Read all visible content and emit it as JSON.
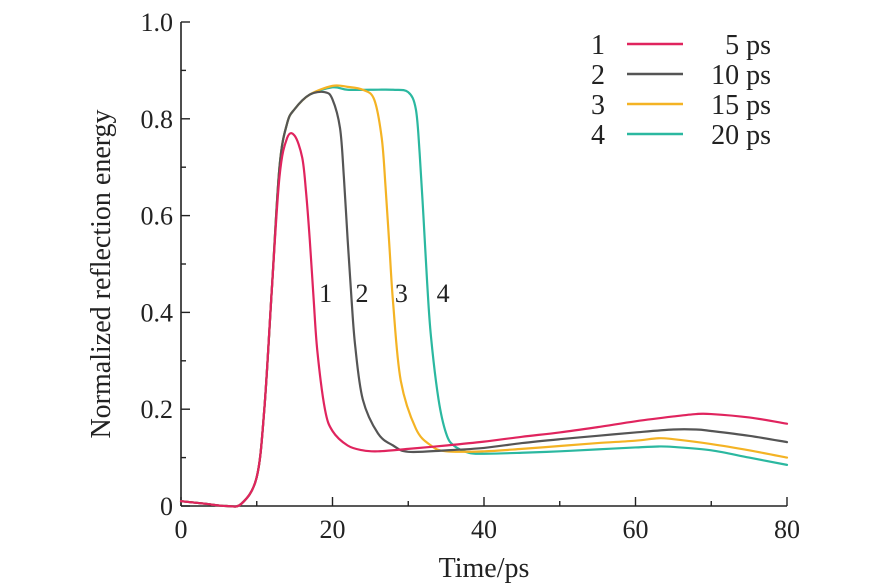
{
  "chart_data": {
    "type": "line",
    "xlabel": "Time/ps",
    "ylabel": "Normalized reflection energy",
    "xlim": [
      0,
      80
    ],
    "ylim": [
      0,
      1.0
    ],
    "xticks": [
      0,
      20,
      40,
      60,
      80
    ],
    "xtick_labels": [
      "0",
      "20",
      "40",
      "60",
      "80"
    ],
    "yticks": [
      0,
      0.2,
      0.4,
      0.6,
      0.8,
      1.0
    ],
    "ytick_labels": [
      "0",
      "0.2",
      "0.4",
      "0.6",
      "0.8",
      "1.0"
    ],
    "legend_position": "top-right",
    "series": [
      {
        "name": "5 ps",
        "index_label": "1",
        "color": "#e0245e",
        "x": [
          0,
          3,
          6,
          8,
          10,
          11,
          12,
          13,
          14,
          15,
          16,
          16.5,
          17,
          17.5,
          18,
          19,
          20,
          22,
          24,
          26,
          30,
          35,
          40,
          45,
          50,
          55,
          60,
          65,
          68,
          70,
          75,
          80
        ],
        "y": [
          0.01,
          0.005,
          0.0,
          0.005,
          0.06,
          0.2,
          0.45,
          0.68,
          0.76,
          0.765,
          0.72,
          0.65,
          0.55,
          0.43,
          0.32,
          0.2,
          0.155,
          0.125,
          0.115,
          0.113,
          0.118,
          0.125,
          0.133,
          0.143,
          0.152,
          0.163,
          0.175,
          0.185,
          0.19,
          0.19,
          0.183,
          0.17
        ]
      },
      {
        "name": "10 ps",
        "index_label": "2",
        "color": "#555555",
        "x": [
          0,
          3,
          6,
          8,
          10,
          11,
          12,
          13,
          14,
          15,
          17,
          19,
          20,
          21,
          21.5,
          22,
          22.5,
          23,
          24,
          26,
          28,
          30,
          35,
          40,
          45,
          50,
          55,
          60,
          65,
          68,
          70,
          75,
          80
        ],
        "y": [
          0.01,
          0.005,
          0.0,
          0.005,
          0.06,
          0.2,
          0.45,
          0.7,
          0.79,
          0.82,
          0.85,
          0.855,
          0.84,
          0.78,
          0.68,
          0.55,
          0.43,
          0.33,
          0.22,
          0.15,
          0.125,
          0.112,
          0.115,
          0.12,
          0.13,
          0.138,
          0.145,
          0.152,
          0.158,
          0.158,
          0.155,
          0.145,
          0.132
        ]
      },
      {
        "name": "15 ps",
        "index_label": "3",
        "color": "#f4b324",
        "x": [
          0,
          3,
          6,
          8,
          10,
          11,
          12,
          13,
          14,
          15,
          17,
          20,
          22,
          24,
          25.5,
          26.5,
          27,
          27.5,
          28,
          29,
          31,
          33,
          35,
          40,
          45,
          50,
          55,
          60,
          63,
          65,
          70,
          75,
          80
        ],
        "y": [
          0.01,
          0.005,
          0.0,
          0.005,
          0.06,
          0.2,
          0.45,
          0.7,
          0.79,
          0.82,
          0.85,
          0.868,
          0.866,
          0.86,
          0.84,
          0.76,
          0.66,
          0.54,
          0.42,
          0.26,
          0.16,
          0.125,
          0.113,
          0.113,
          0.118,
          0.124,
          0.13,
          0.135,
          0.14,
          0.138,
          0.128,
          0.115,
          0.1
        ]
      },
      {
        "name": "20 ps",
        "index_label": "4",
        "color": "#2bb8a0",
        "x": [
          0,
          3,
          6,
          8,
          10,
          11,
          12,
          13,
          14,
          15,
          17,
          20,
          22,
          25,
          28,
          30,
          31,
          31.5,
          32,
          32.5,
          33,
          34,
          35,
          36,
          38,
          40,
          45,
          50,
          55,
          60,
          63,
          65,
          70,
          75,
          80
        ],
        "y": [
          0.01,
          0.005,
          0.0,
          0.005,
          0.06,
          0.2,
          0.45,
          0.7,
          0.79,
          0.82,
          0.85,
          0.865,
          0.86,
          0.86,
          0.86,
          0.855,
          0.82,
          0.73,
          0.6,
          0.46,
          0.35,
          0.22,
          0.15,
          0.125,
          0.11,
          0.108,
          0.11,
          0.113,
          0.117,
          0.121,
          0.123,
          0.122,
          0.115,
          0.1,
          0.085
        ]
      }
    ],
    "annotations": [
      {
        "text": "1",
        "x": 19.1,
        "y": 0.44
      },
      {
        "text": "2",
        "x": 23.9,
        "y": 0.44
      },
      {
        "text": "3",
        "x": 29.1,
        "y": 0.44
      },
      {
        "text": "4",
        "x": 34.6,
        "y": 0.44
      }
    ]
  }
}
